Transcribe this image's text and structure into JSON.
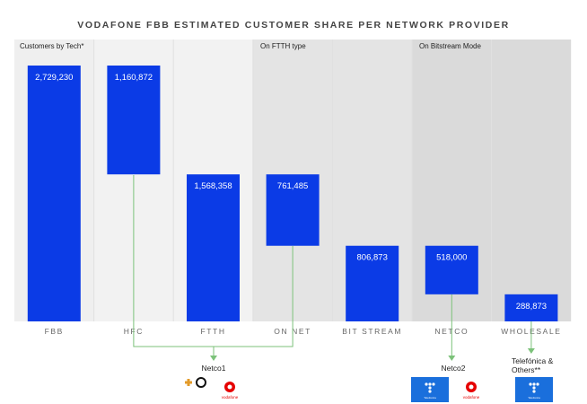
{
  "chart_data": {
    "type": "bar",
    "subtype": "waterfall",
    "title": "VODAFONE FBB ESTIMATED CUSTOMER SHARE PER NETWORK PROVIDER",
    "sections": [
      "Customers by Tech*",
      "On FTTH type",
      "On Bitstream Mode"
    ],
    "categories": [
      "FBB",
      "HFC",
      "FTTH",
      "ON NET",
      "BIT STREAM",
      "NETCO",
      "WHOLESALE"
    ],
    "values": [
      2729230,
      1160872,
      1568358,
      761485,
      806873,
      518000,
      288873
    ],
    "value_labels": [
      "2,729,230",
      "1,160,872",
      "1,568,358",
      "761,485",
      "806,873",
      "518,000",
      "288,873"
    ],
    "bases": [
      0,
      1568358,
      0,
      806873,
      0,
      288873,
      0
    ],
    "ylim": [
      0,
      2729230
    ],
    "groups": [
      {
        "label": "Netco1",
        "from": [
          "HFC",
          "ON NET"
        ]
      },
      {
        "label": "Netco2",
        "from": [
          "NETCO"
        ]
      },
      {
        "label": "Telefónica & Others**",
        "from": [
          "WHOLESALE"
        ]
      }
    ],
    "logos": {
      "vodafone": "vodafone",
      "telefonica": "Telefonica"
    },
    "colors": {
      "bar": "#0b3be6",
      "link": "#7cc27a"
    }
  }
}
